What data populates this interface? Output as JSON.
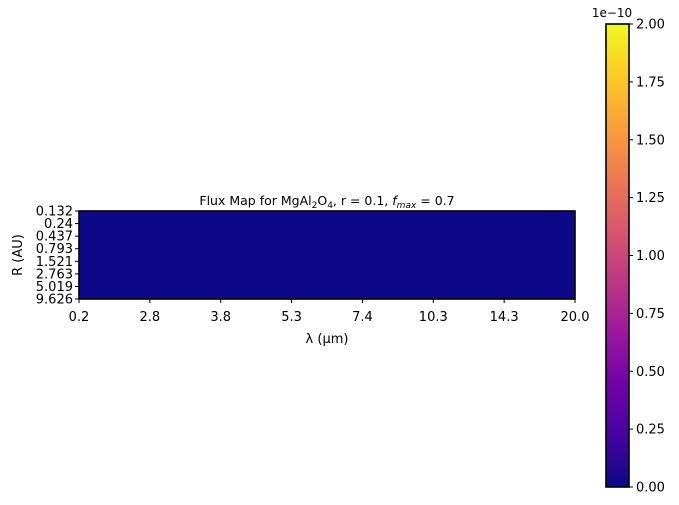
{
  "chart_data": [
    {
      "type": "heatmap",
      "title_parts": {
        "prefix": "Flux Map for MgAl",
        "sub1": "2",
        "mid": "O",
        "sub2": "4",
        "r_text": ", r = 0.1, ",
        "f_symbol": "f",
        "f_subscript": "max",
        "f_value": " = 0.7"
      },
      "xlabel": "λ (μm)",
      "ylabel": "R (AU)",
      "x_ticklabels": [
        "0.2",
        "2.8",
        "3.8",
        "5.3",
        "7.4",
        "10.3",
        "14.3",
        "20.0"
      ],
      "y_ticklabels": [
        "0.132",
        "0.24",
        "0.437",
        "0.793",
        "1.521",
        "2.763",
        "5.019",
        "9.626"
      ],
      "values": [
        [
          0,
          0,
          0,
          0,
          0,
          0,
          0,
          0
        ],
        [
          0,
          0,
          0,
          0,
          0,
          0,
          0,
          0
        ],
        [
          0,
          0,
          0,
          0,
          0,
          0,
          0,
          0
        ],
        [
          0,
          0,
          0,
          0,
          0,
          0,
          0,
          0
        ],
        [
          0,
          0,
          0,
          0,
          0,
          0,
          0,
          0
        ],
        [
          0,
          0,
          0,
          0,
          0,
          0,
          0,
          0
        ],
        [
          0,
          0,
          0,
          0,
          0,
          0,
          0,
          0
        ],
        [
          0,
          0,
          0,
          0,
          0,
          0,
          0,
          0
        ]
      ],
      "colormap": "plasma",
      "fill_color": "#0d0887",
      "colorbar": {
        "min": 0,
        "max": 2e-10,
        "scale_label": "1e−10",
        "ticklabels": [
          "0.00",
          "0.25",
          "0.50",
          "0.75",
          "1.00",
          "1.25",
          "1.50",
          "1.75",
          "2.00"
        ],
        "gradient_colors": [
          "#0d0887",
          "#46039f",
          "#7201a8",
          "#9c179e",
          "#bd3786",
          "#d8576b",
          "#ed7953",
          "#fb9f3a",
          "#fdca26",
          "#f0f921"
        ]
      }
    }
  ]
}
